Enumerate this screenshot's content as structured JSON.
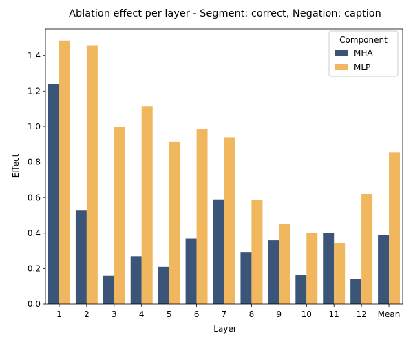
{
  "chart_data": {
    "type": "bar",
    "title": "Ablation effect per layer - Segment: correct, Negation: caption",
    "xlabel": "Layer",
    "ylabel": "Effect",
    "categories": [
      "1",
      "2",
      "3",
      "4",
      "5",
      "6",
      "7",
      "8",
      "9",
      "10",
      "11",
      "12",
      "Mean"
    ],
    "series": [
      {
        "name": "MHA",
        "color": "#3a5577",
        "values": [
          1.24,
          0.53,
          0.16,
          0.27,
          0.21,
          0.37,
          0.59,
          0.29,
          0.36,
          0.165,
          0.4,
          0.14,
          0.39
        ]
      },
      {
        "name": "MLP",
        "color": "#f0b75e",
        "values": [
          1.485,
          1.455,
          1.0,
          1.115,
          0.915,
          0.985,
          0.94,
          0.585,
          0.45,
          0.4,
          0.345,
          0.62,
          0.855
        ]
      }
    ],
    "ylim": [
      0,
      1.55
    ],
    "yticks": [
      "0.0",
      "0.2",
      "0.4",
      "0.6",
      "0.8",
      "1.0",
      "1.2",
      "1.4"
    ],
    "legend": {
      "title": "Component",
      "placement": "top-right"
    },
    "grid": false
  }
}
